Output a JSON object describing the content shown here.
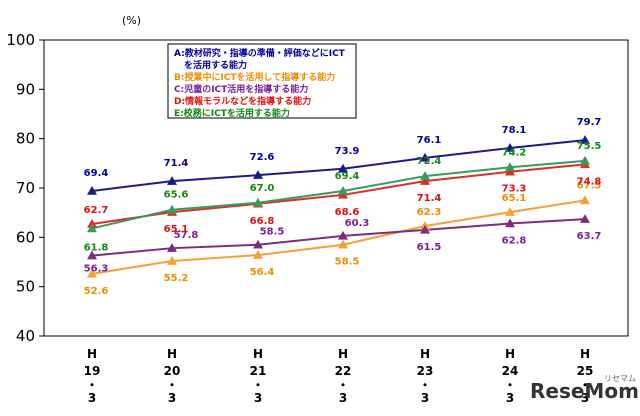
{
  "chart_data": {
    "type": "line",
    "unit_label": "(%)",
    "ylim": [
      40,
      100
    ],
    "yticks": [
      40,
      50,
      60,
      70,
      80,
      90,
      100
    ],
    "grid": false,
    "legend_position": "top-center",
    "categories": [
      [
        "H",
        "19",
        "・",
        "3"
      ],
      [
        "H",
        "20",
        "・",
        "3"
      ],
      [
        "H",
        "21",
        "・",
        "3"
      ],
      [
        "H",
        "22",
        "・",
        "3"
      ],
      [
        "H",
        "23",
        "・",
        "3"
      ],
      [
        "H",
        "24",
        "・",
        "3"
      ],
      [
        "H",
        "25",
        "・",
        "3"
      ]
    ],
    "series": [
      {
        "name": "A:教材研究・指導の準備・評価などにICT\nを活用する能力",
        "color": "#1a1a8c",
        "text_color": "#000099",
        "marker": "triangle",
        "values": [
          69.4,
          71.4,
          72.6,
          73.9,
          76.1,
          78.1,
          79.7
        ]
      },
      {
        "name": "B:授業中にICTを活用して指導する能力",
        "color": "#f4a234",
        "text_color": "#f08c00",
        "marker": "triangle",
        "values": [
          52.6,
          55.2,
          56.4,
          58.5,
          62.3,
          65.1,
          67.5
        ]
      },
      {
        "name": "C:児童のICT活用を指導する能力",
        "color": "#7b2d82",
        "text_color": "#7a1f99",
        "marker": "triangle",
        "values": [
          56.3,
          57.8,
          58.5,
          60.3,
          61.5,
          62.8,
          63.7
        ]
      },
      {
        "name": "D:情報モラルなどを指導する能力",
        "color": "#d9302b",
        "text_color": "#e01010",
        "marker": "triangle",
        "values": [
          62.7,
          65.1,
          66.8,
          68.6,
          71.4,
          73.3,
          74.8
        ]
      },
      {
        "name": "E:校務にICTを活用する能力",
        "color": "#3a9a5a",
        "text_color": "#118811",
        "marker": "triangle",
        "values": [
          61.8,
          65.6,
          67.0,
          69.4,
          72.4,
          74.2,
          75.5
        ]
      }
    ]
  },
  "watermark": {
    "name": "ReseMom",
    "sub": "リセマム"
  }
}
